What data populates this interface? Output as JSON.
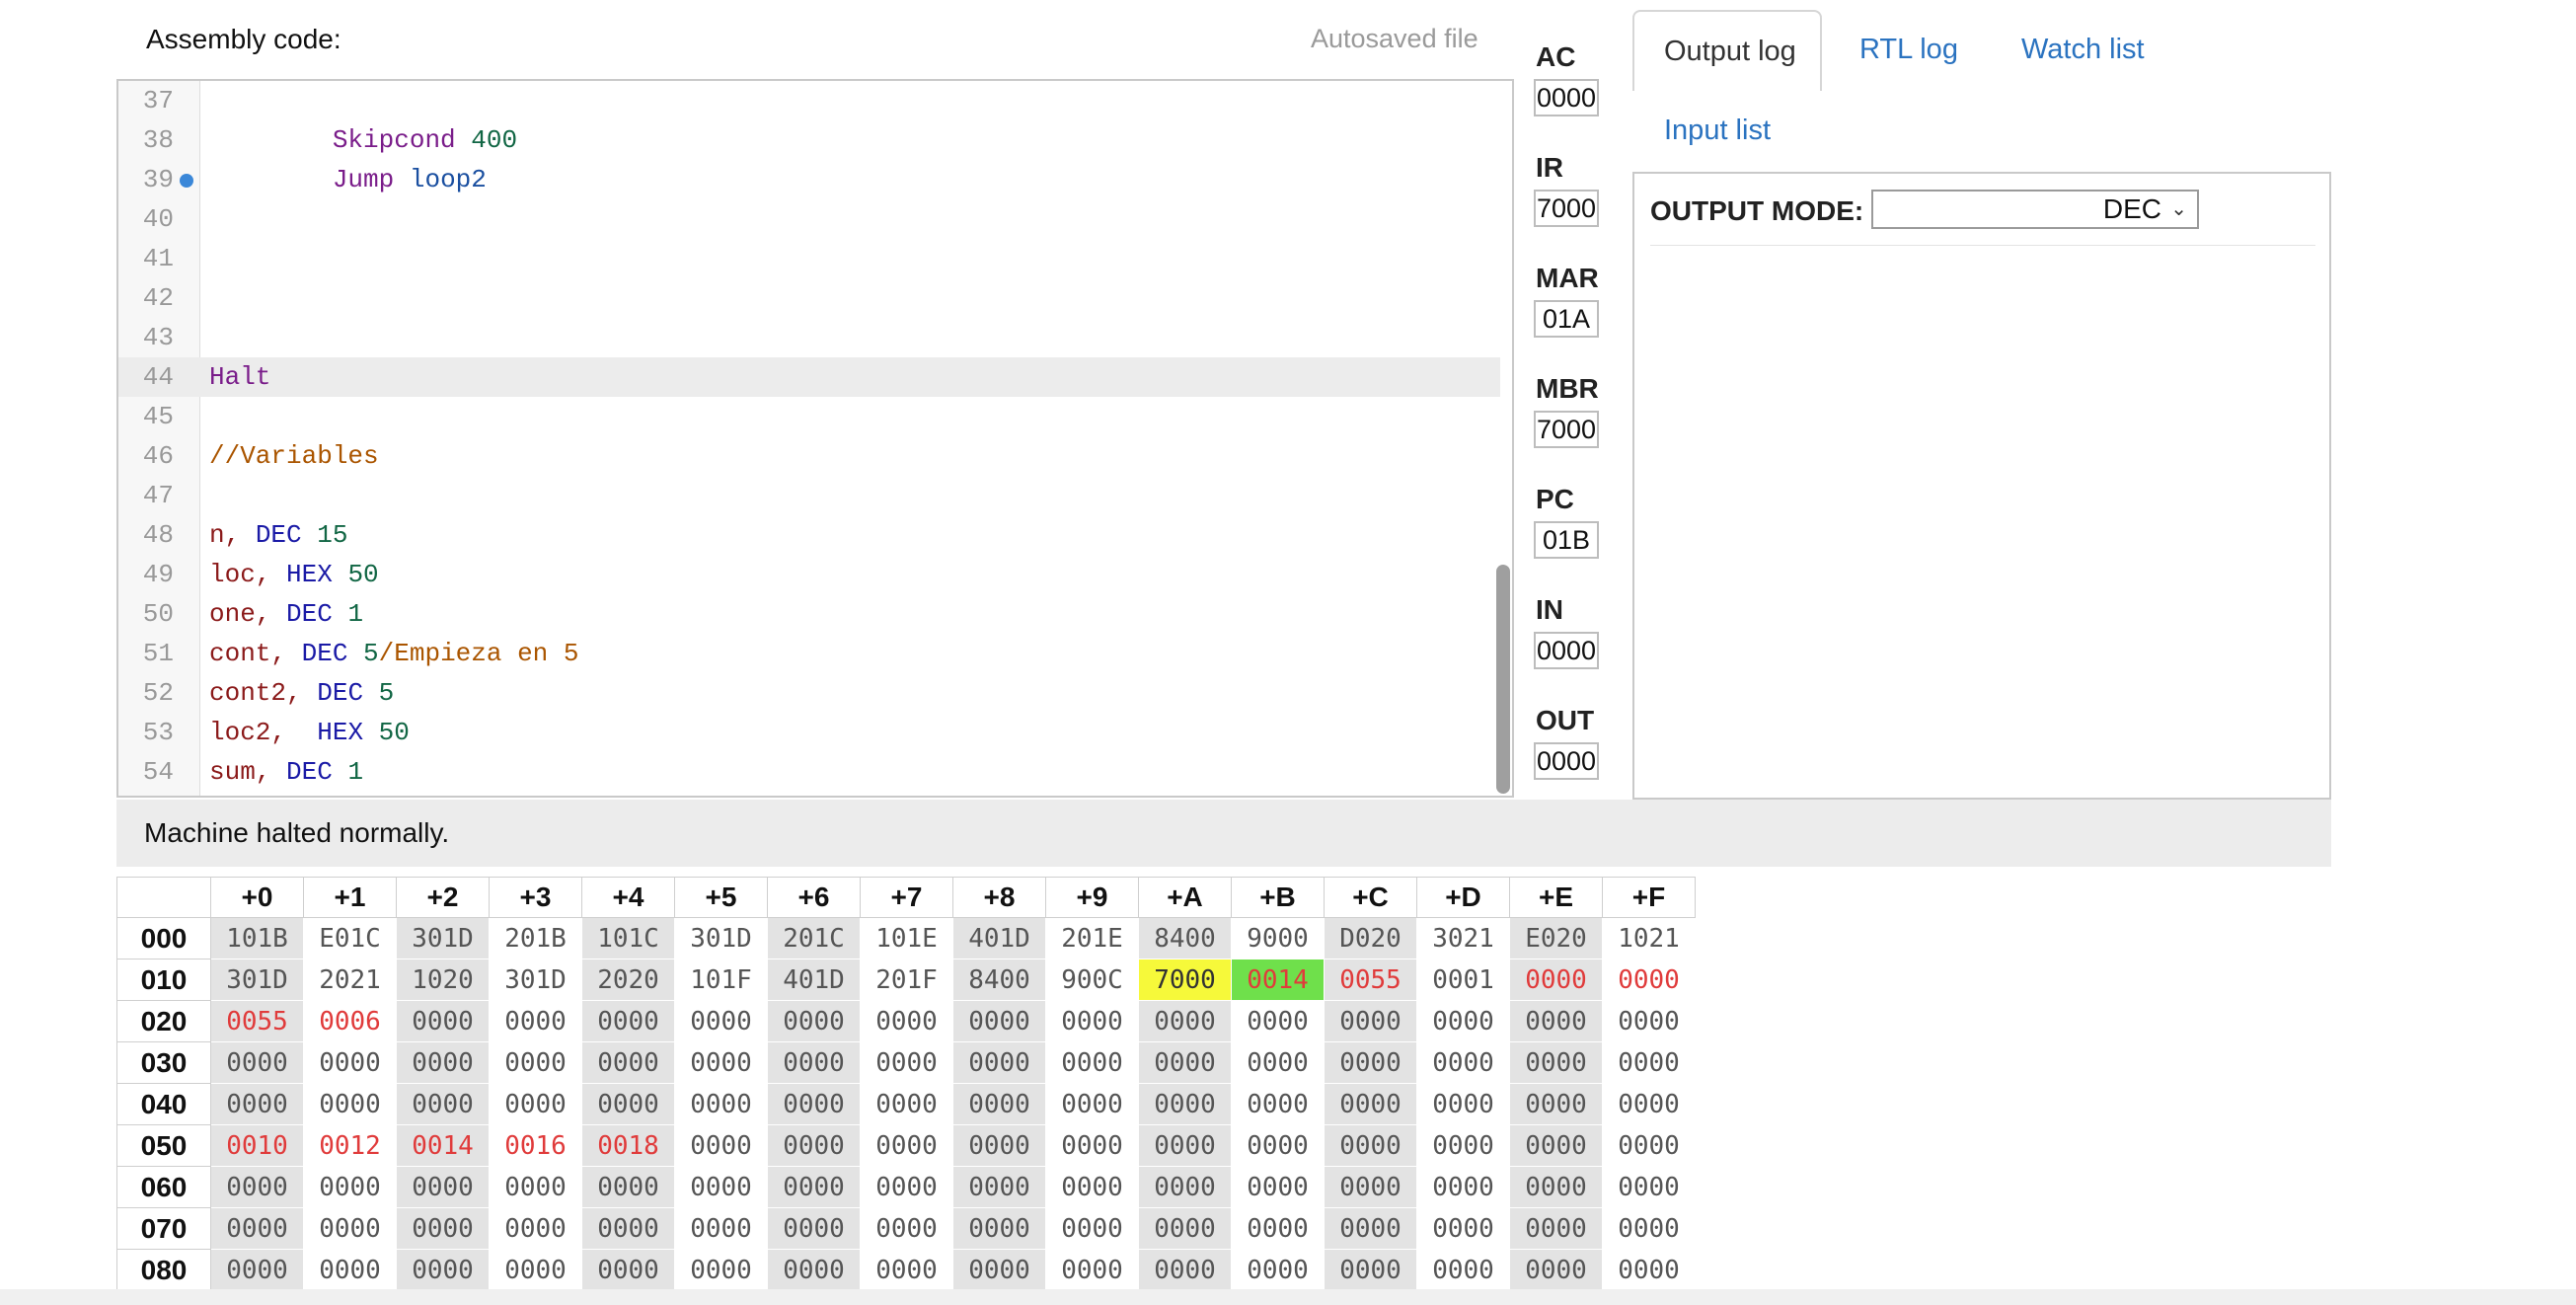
{
  "editor": {
    "label": "Assembly code:",
    "autosave": "Autosaved file",
    "lines": [
      {
        "n": "37",
        "text": ""
      },
      {
        "n": "38",
        "text": "        Skipcond 400"
      },
      {
        "n": "39",
        "text": "        Jump loop2",
        "breakpoint": true
      },
      {
        "n": "40",
        "text": ""
      },
      {
        "n": "41",
        "text": ""
      },
      {
        "n": "42",
        "text": ""
      },
      {
        "n": "43",
        "text": ""
      },
      {
        "n": "44",
        "text": "Halt",
        "active": true
      },
      {
        "n": "45",
        "text": ""
      },
      {
        "n": "46",
        "text": "//Variables"
      },
      {
        "n": "47",
        "text": ""
      },
      {
        "n": "48",
        "text": "n, DEC 15"
      },
      {
        "n": "49",
        "text": "loc, HEX 50"
      },
      {
        "n": "50",
        "text": "one, DEC 1"
      },
      {
        "n": "51",
        "text": "cont, DEC 5/Empieza en 5"
      },
      {
        "n": "52",
        "text": "cont2, DEC 5"
      },
      {
        "n": "53",
        "text": "loc2,  HEX 50"
      },
      {
        "n": "54",
        "text": "sum, DEC 1"
      }
    ]
  },
  "status": "Machine halted normally.",
  "registers": [
    {
      "name": "AC",
      "value": "0000"
    },
    {
      "name": "IR",
      "value": "7000"
    },
    {
      "name": "MAR",
      "value": "01A"
    },
    {
      "name": "MBR",
      "value": "7000"
    },
    {
      "name": "PC",
      "value": "01B"
    },
    {
      "name": "IN",
      "value": "0000"
    },
    {
      "name": "OUT",
      "value": "0000"
    }
  ],
  "tabs": {
    "output_log": "Output log",
    "rtl_log": "RTL log",
    "watch_list": "Watch list",
    "input_list": "Input list"
  },
  "output": {
    "mode_label": "OUTPUT MODE:",
    "mode_value": "DEC"
  },
  "memory": {
    "columns": [
      "+0",
      "+1",
      "+2",
      "+3",
      "+4",
      "+5",
      "+6",
      "+7",
      "+8",
      "+9",
      "+A",
      "+B",
      "+C",
      "+D",
      "+E",
      "+F"
    ],
    "rows": [
      {
        "addr": "000",
        "cells": [
          "101B",
          "E01C",
          "301D",
          "201B",
          "101C",
          "301D",
          "201C",
          "101E",
          "401D",
          "201E",
          "8400",
          "9000",
          "D020",
          "3021",
          "E020",
          "1021"
        ]
      },
      {
        "addr": "010",
        "cells": [
          "301D",
          "2021",
          "1020",
          "301D",
          "2020",
          "101F",
          "401D",
          "201F",
          "8400",
          "900C",
          "7000",
          "0014",
          "0055",
          "0001",
          "0000",
          "0000"
        ]
      },
      {
        "addr": "020",
        "cells": [
          "0055",
          "0006",
          "0000",
          "0000",
          "0000",
          "0000",
          "0000",
          "0000",
          "0000",
          "0000",
          "0000",
          "0000",
          "0000",
          "0000",
          "0000",
          "0000"
        ]
      },
      {
        "addr": "030",
        "cells": [
          "0000",
          "0000",
          "0000",
          "0000",
          "0000",
          "0000",
          "0000",
          "0000",
          "0000",
          "0000",
          "0000",
          "0000",
          "0000",
          "0000",
          "0000",
          "0000"
        ]
      },
      {
        "addr": "040",
        "cells": [
          "0000",
          "0000",
          "0000",
          "0000",
          "0000",
          "0000",
          "0000",
          "0000",
          "0000",
          "0000",
          "0000",
          "0000",
          "0000",
          "0000",
          "0000",
          "0000"
        ]
      },
      {
        "addr": "050",
        "cells": [
          "0010",
          "0012",
          "0014",
          "0016",
          "0018",
          "0000",
          "0000",
          "0000",
          "0000",
          "0000",
          "0000",
          "0000",
          "0000",
          "0000",
          "0000",
          "0000"
        ]
      },
      {
        "addr": "060",
        "cells": [
          "0000",
          "0000",
          "0000",
          "0000",
          "0000",
          "0000",
          "0000",
          "0000",
          "0000",
          "0000",
          "0000",
          "0000",
          "0000",
          "0000",
          "0000",
          "0000"
        ]
      },
      {
        "addr": "070",
        "cells": [
          "0000",
          "0000",
          "0000",
          "0000",
          "0000",
          "0000",
          "0000",
          "0000",
          "0000",
          "0000",
          "0000",
          "0000",
          "0000",
          "0000",
          "0000",
          "0000"
        ]
      },
      {
        "addr": "080",
        "cells": [
          "0000",
          "0000",
          "0000",
          "0000",
          "0000",
          "0000",
          "0000",
          "0000",
          "0000",
          "0000",
          "0000",
          "0000",
          "0000",
          "0000",
          "0000",
          "0000"
        ]
      }
    ],
    "highlight_colors": {
      "pc_cell": "#f6f93a",
      "mar_cell": "#6fe04b",
      "changed_text": "#e03b3b"
    }
  }
}
